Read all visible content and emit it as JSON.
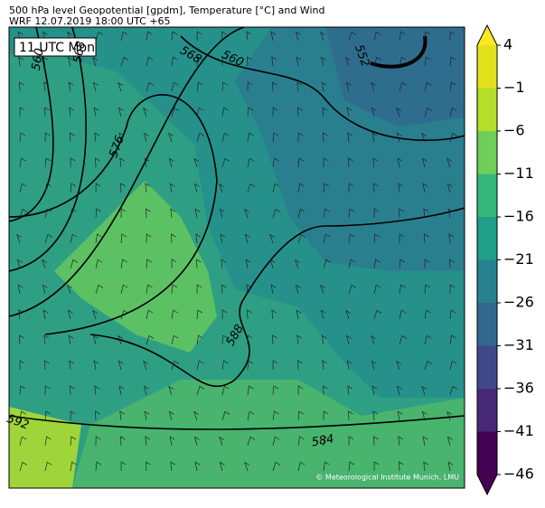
{
  "header": {
    "title": "500 hPa level Geopotential [gpdm], Temperature [°C] and Wind",
    "subtitle": "WRF 12.07.2019 18:00 UTC +65"
  },
  "time_label": "11 UTC Mon",
  "contour_labels": [
    "560",
    "568",
    "568",
    "560",
    "552",
    "576",
    "588",
    "592",
    "584"
  ],
  "credit": "© Meteorological Institute Munich, LMU",
  "colorbar": {
    "range": [
      -46,
      4
    ],
    "ticks": [
      4,
      {
        "value": -1,
        "label": "−1"
      },
      {
        "value": -6,
        "label": "−6"
      },
      {
        "value": -11,
        "label": "−11"
      },
      {
        "value": -16,
        "label": "−16"
      },
      {
        "value": -21,
        "label": "−21"
      },
      {
        "value": -26,
        "label": "−26"
      },
      {
        "value": -31,
        "label": "−31"
      },
      {
        "value": -36,
        "label": "−36"
      },
      {
        "value": -41,
        "label": "−41"
      },
      {
        "value": -46,
        "label": "−46"
      }
    ],
    "colors": [
      "#440154",
      "#482878",
      "#3e4989",
      "#31688e",
      "#26828e",
      "#1f9e89",
      "#35b779",
      "#6ece58",
      "#b5de2b",
      "#e2e21c"
    ],
    "over_color": "#fde725",
    "under_color": "#440154"
  }
}
